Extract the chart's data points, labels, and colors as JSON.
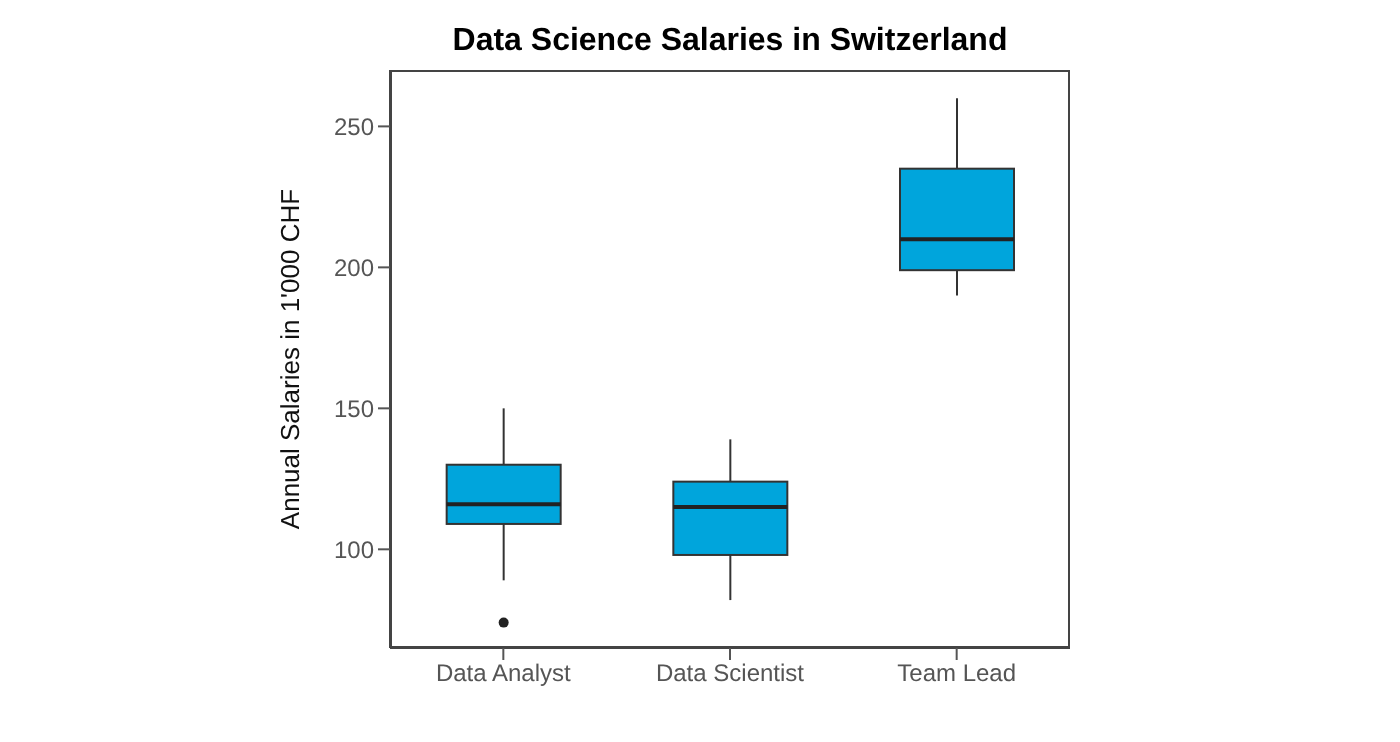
{
  "chart_data": {
    "type": "box",
    "title": "Data Science Salaries in Switzerland",
    "ylabel": "Annual Salaries in 1'000 CHF",
    "categories": [
      "Data Analyst",
      "Data Scientist",
      "Team Lead"
    ],
    "color": "#00a5dc",
    "ylim": [
      65,
      270
    ],
    "yticks": [
      100,
      150,
      200,
      250
    ],
    "grid": false,
    "legend": false,
    "boxes": [
      {
        "low": 89,
        "q1": 109,
        "median": 116,
        "q3": 130,
        "high": 150,
        "outliers": [
          74
        ]
      },
      {
        "low": 82,
        "q1": 98,
        "median": 115,
        "q3": 124,
        "high": 139
      },
      {
        "low": 190,
        "q1": 199,
        "median": 210,
        "q3": 235,
        "high": 260
      }
    ]
  }
}
